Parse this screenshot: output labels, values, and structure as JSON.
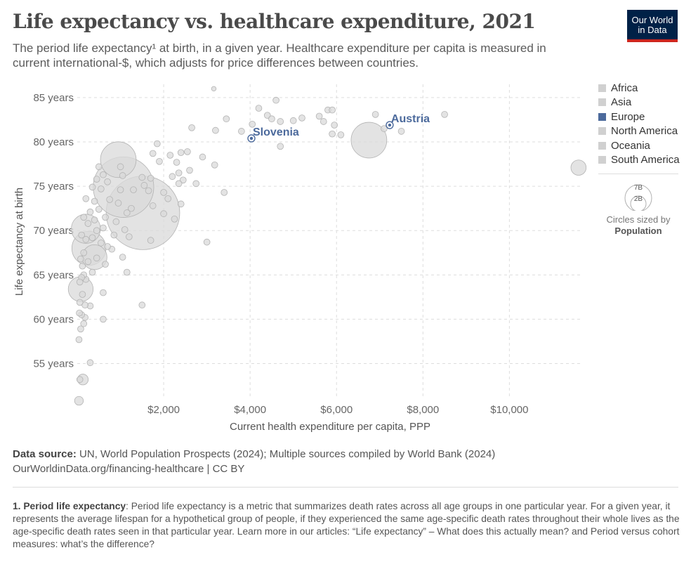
{
  "header": {
    "title": "Life expectancy vs. healthcare expenditure, 2021",
    "subtitle": "The period life expectancy¹ at birth, in a given year. Healthcare expenditure per capita is measured in current international-$, which adjusts for price differences between countries.",
    "logo_line1": "Our World",
    "logo_line2": "in Data"
  },
  "colors": {
    "highlight": "#4c6a9c",
    "muted_point": "#d9d9d9",
    "logo_bg": "#002147",
    "logo_accent": "#ce261e"
  },
  "legend": {
    "items": [
      {
        "label": "Africa",
        "color": "#d0d0d0"
      },
      {
        "label": "Asia",
        "color": "#d0d0d0"
      },
      {
        "label": "Europe",
        "color": "#4c6a9c"
      },
      {
        "label": "North America",
        "color": "#d0d0d0"
      },
      {
        "label": "Oceania",
        "color": "#d0d0d0"
      },
      {
        "label": "South America",
        "color": "#d0d0d0"
      }
    ],
    "size_key": {
      "large_label": "7B",
      "small_label": "2B",
      "note": "Circles sized by",
      "variable": "Population"
    }
  },
  "footer": {
    "source_label": "Data source:",
    "source_text": "UN, World Population Prospects (2024); Multiple sources compiled by World Bank (2024)",
    "link_text": "OurWorldinData.org/financing-healthcare | CC BY",
    "footnote_label": "1. Period life expectancy",
    "footnote_text": ": Period life expectancy is a metric that summarizes death rates across all age groups in one particular year. For a given year, it represents the average lifespan for a hypothetical group of people, if they experienced the same age-specific death rates throughout their whole lives as the age-specific death rates seen in that particular year. Learn more in our articles: “Life expectancy” – What does this actually mean? and Period versus cohort measures: what’s the difference?"
  },
  "chart_data": {
    "type": "scatter",
    "title": "Life expectancy vs. healthcare expenditure, 2021",
    "xlabel": "Current health expenditure per capita, PPP",
    "ylabel": "Life expectancy at birth",
    "xlim": [
      0,
      11700
    ],
    "ylim": [
      51,
      86.5
    ],
    "x_ticks": [
      {
        "value": 2000,
        "label": "$2,000"
      },
      {
        "value": 4000,
        "label": "$4,000"
      },
      {
        "value": 6000,
        "label": "$6,000"
      },
      {
        "value": 8000,
        "label": "$8,000"
      },
      {
        "value": 10000,
        "label": "$10,000"
      }
    ],
    "y_ticks": [
      {
        "value": 55,
        "label": "55 years"
      },
      {
        "value": 60,
        "label": "60 years"
      },
      {
        "value": 65,
        "label": "65 years"
      },
      {
        "value": 70,
        "label": "70 years"
      },
      {
        "value": 75,
        "label": "75 years"
      },
      {
        "value": 80,
        "label": "80 years"
      },
      {
        "value": 85,
        "label": "85 years"
      }
    ],
    "grid": true,
    "legend_position": "right",
    "size_variable": "Population",
    "highlighted": [
      {
        "name": "Austria",
        "x": 7230,
        "y": 81.9,
        "pop": 9.0
      },
      {
        "name": "Slovenia",
        "x": 4030,
        "y": 80.4,
        "pop": 2.1
      }
    ],
    "points": [
      {
        "x": 1520,
        "y": 72.0,
        "pop": 1400
      },
      {
        "x": 1070,
        "y": 74.9,
        "pop": 950
      },
      {
        "x": 950,
        "y": 78.0,
        "pop": 330
      },
      {
        "x": 270,
        "y": 68.0,
        "pop": 300
      },
      {
        "x": 200,
        "y": 70.2,
        "pop": 220
      },
      {
        "x": 6750,
        "y": 80.2,
        "pop": 330
      },
      {
        "x": 80,
        "y": 63.4,
        "pop": 160
      },
      {
        "x": 400,
        "y": 67.0,
        "pop": 160
      },
      {
        "x": 130,
        "y": 53.2,
        "pop": 30
      },
      {
        "x": 40,
        "y": 50.8,
        "pop": 20
      },
      {
        "x": 3160,
        "y": 86.0,
        "pop": 5
      },
      {
        "x": 11600,
        "y": 77.1,
        "pop": 60
      },
      {
        "x": 4600,
        "y": 84.7,
        "pop": 10
      },
      {
        "x": 4400,
        "y": 83.0,
        "pop": 10
      },
      {
        "x": 4200,
        "y": 83.8,
        "pop": 10
      },
      {
        "x": 4500,
        "y": 82.6,
        "pop": 10
      },
      {
        "x": 4700,
        "y": 82.3,
        "pop": 10
      },
      {
        "x": 5000,
        "y": 82.4,
        "pop": 10
      },
      {
        "x": 4050,
        "y": 82.0,
        "pop": 10
      },
      {
        "x": 3800,
        "y": 81.2,
        "pop": 10
      },
      {
        "x": 5600,
        "y": 82.9,
        "pop": 10
      },
      {
        "x": 5700,
        "y": 82.3,
        "pop": 10
      },
      {
        "x": 5800,
        "y": 83.6,
        "pop": 10
      },
      {
        "x": 5900,
        "y": 83.6,
        "pop": 10
      },
      {
        "x": 5950,
        "y": 81.9,
        "pop": 10
      },
      {
        "x": 5900,
        "y": 80.9,
        "pop": 10
      },
      {
        "x": 6100,
        "y": 80.8,
        "pop": 10
      },
      {
        "x": 6900,
        "y": 83.1,
        "pop": 10
      },
      {
        "x": 7100,
        "y": 81.5,
        "pop": 10
      },
      {
        "x": 7500,
        "y": 81.2,
        "pop": 10
      },
      {
        "x": 8500,
        "y": 83.1,
        "pop": 10
      },
      {
        "x": 4700,
        "y": 79.5,
        "pop": 10
      },
      {
        "x": 5200,
        "y": 82.7,
        "pop": 10
      },
      {
        "x": 3450,
        "y": 82.6,
        "pop": 10
      },
      {
        "x": 3200,
        "y": 81.3,
        "pop": 10
      },
      {
        "x": 2650,
        "y": 81.6,
        "pop": 10
      },
      {
        "x": 3400,
        "y": 74.3,
        "pop": 10
      },
      {
        "x": 3000,
        "y": 68.7,
        "pop": 10
      },
      {
        "x": 3180,
        "y": 77.4,
        "pop": 10
      },
      {
        "x": 2900,
        "y": 78.3,
        "pop": 10
      },
      {
        "x": 2550,
        "y": 78.9,
        "pop": 10
      },
      {
        "x": 2400,
        "y": 78.8,
        "pop": 10
      },
      {
        "x": 2300,
        "y": 77.7,
        "pop": 10
      },
      {
        "x": 2150,
        "y": 78.5,
        "pop": 10
      },
      {
        "x": 2350,
        "y": 76.5,
        "pop": 10
      },
      {
        "x": 2200,
        "y": 76.1,
        "pop": 10
      },
      {
        "x": 2450,
        "y": 75.7,
        "pop": 10
      },
      {
        "x": 2600,
        "y": 76.8,
        "pop": 10
      },
      {
        "x": 2350,
        "y": 75.3,
        "pop": 10
      },
      {
        "x": 2000,
        "y": 74.3,
        "pop": 10
      },
      {
        "x": 2100,
        "y": 73.6,
        "pop": 10
      },
      {
        "x": 2400,
        "y": 73.0,
        "pop": 10
      },
      {
        "x": 2250,
        "y": 71.3,
        "pop": 10
      },
      {
        "x": 1850,
        "y": 79.8,
        "pop": 10
      },
      {
        "x": 1750,
        "y": 78.7,
        "pop": 10
      },
      {
        "x": 1700,
        "y": 75.9,
        "pop": 10
      },
      {
        "x": 1650,
        "y": 74.5,
        "pop": 10
      },
      {
        "x": 1550,
        "y": 75.1,
        "pop": 10
      },
      {
        "x": 1500,
        "y": 76.0,
        "pop": 10
      },
      {
        "x": 1300,
        "y": 74.6,
        "pop": 10
      },
      {
        "x": 1700,
        "y": 68.9,
        "pop": 10
      },
      {
        "x": 1500,
        "y": 61.6,
        "pop": 10
      },
      {
        "x": 1250,
        "y": 72.5,
        "pop": 10
      },
      {
        "x": 1150,
        "y": 72.0,
        "pop": 10
      },
      {
        "x": 1100,
        "y": 70.1,
        "pop": 10
      },
      {
        "x": 1200,
        "y": 69.3,
        "pop": 10
      },
      {
        "x": 1150,
        "y": 65.3,
        "pop": 10
      },
      {
        "x": 1050,
        "y": 67.0,
        "pop": 10
      },
      {
        "x": 1000,
        "y": 77.2,
        "pop": 10
      },
      {
        "x": 1050,
        "y": 76.2,
        "pop": 10
      },
      {
        "x": 1000,
        "y": 74.6,
        "pop": 10
      },
      {
        "x": 950,
        "y": 73.1,
        "pop": 10
      },
      {
        "x": 900,
        "y": 71.0,
        "pop": 10
      },
      {
        "x": 850,
        "y": 69.5,
        "pop": 10
      },
      {
        "x": 800,
        "y": 67.9,
        "pop": 10
      },
      {
        "x": 750,
        "y": 73.5,
        "pop": 10
      },
      {
        "x": 700,
        "y": 75.5,
        "pop": 10
      },
      {
        "x": 650,
        "y": 71.5,
        "pop": 10
      },
      {
        "x": 600,
        "y": 76.3,
        "pop": 10
      },
      {
        "x": 600,
        "y": 70.3,
        "pop": 10
      },
      {
        "x": 550,
        "y": 74.7,
        "pop": 10
      },
      {
        "x": 550,
        "y": 68.6,
        "pop": 10
      },
      {
        "x": 500,
        "y": 72.4,
        "pop": 10
      },
      {
        "x": 500,
        "y": 77.2,
        "pop": 10
      },
      {
        "x": 450,
        "y": 75.8,
        "pop": 10
      },
      {
        "x": 450,
        "y": 70.0,
        "pop": 10
      },
      {
        "x": 450,
        "y": 66.9,
        "pop": 10
      },
      {
        "x": 400,
        "y": 73.3,
        "pop": 10
      },
      {
        "x": 400,
        "y": 71.2,
        "pop": 10
      },
      {
        "x": 350,
        "y": 74.9,
        "pop": 10
      },
      {
        "x": 350,
        "y": 69.2,
        "pop": 10
      },
      {
        "x": 350,
        "y": 65.3,
        "pop": 10
      },
      {
        "x": 300,
        "y": 72.1,
        "pop": 10
      },
      {
        "x": 300,
        "y": 61.5,
        "pop": 10
      },
      {
        "x": 300,
        "y": 55.1,
        "pop": 10
      },
      {
        "x": 250,
        "y": 70.8,
        "pop": 10
      },
      {
        "x": 250,
        "y": 66.5,
        "pop": 10
      },
      {
        "x": 200,
        "y": 73.6,
        "pop": 10
      },
      {
        "x": 200,
        "y": 69.0,
        "pop": 10
      },
      {
        "x": 200,
        "y": 64.5,
        "pop": 10
      },
      {
        "x": 180,
        "y": 61.6,
        "pop": 10
      },
      {
        "x": 180,
        "y": 60.2,
        "pop": 10
      },
      {
        "x": 150,
        "y": 71.5,
        "pop": 10
      },
      {
        "x": 150,
        "y": 67.5,
        "pop": 10
      },
      {
        "x": 150,
        "y": 65.0,
        "pop": 10
      },
      {
        "x": 150,
        "y": 59.5,
        "pop": 10
      },
      {
        "x": 120,
        "y": 66.0,
        "pop": 10
      },
      {
        "x": 120,
        "y": 62.8,
        "pop": 10
      },
      {
        "x": 100,
        "y": 69.5,
        "pop": 10
      },
      {
        "x": 100,
        "y": 64.7,
        "pop": 10
      },
      {
        "x": 100,
        "y": 60.5,
        "pop": 10
      },
      {
        "x": 80,
        "y": 66.8,
        "pop": 10
      },
      {
        "x": 80,
        "y": 58.9,
        "pop": 10
      },
      {
        "x": 60,
        "y": 64.2,
        "pop": 10
      },
      {
        "x": 60,
        "y": 61.9,
        "pop": 10
      },
      {
        "x": 50,
        "y": 60.7,
        "pop": 10
      },
      {
        "x": 40,
        "y": 57.7,
        "pop": 10
      },
      {
        "x": 60,
        "y": 53.2,
        "pop": 10
      },
      {
        "x": 700,
        "y": 68.2,
        "pop": 10
      },
      {
        "x": 600,
        "y": 63.0,
        "pop": 10
      },
      {
        "x": 600,
        "y": 60.0,
        "pop": 10
      },
      {
        "x": 650,
        "y": 66.2,
        "pop": 10
      },
      {
        "x": 1750,
        "y": 72.8,
        "pop": 10
      },
      {
        "x": 1900,
        "y": 77.8,
        "pop": 10
      },
      {
        "x": 2750,
        "y": 75.3,
        "pop": 10
      },
      {
        "x": 2000,
        "y": 71.9,
        "pop": 10
      }
    ]
  }
}
